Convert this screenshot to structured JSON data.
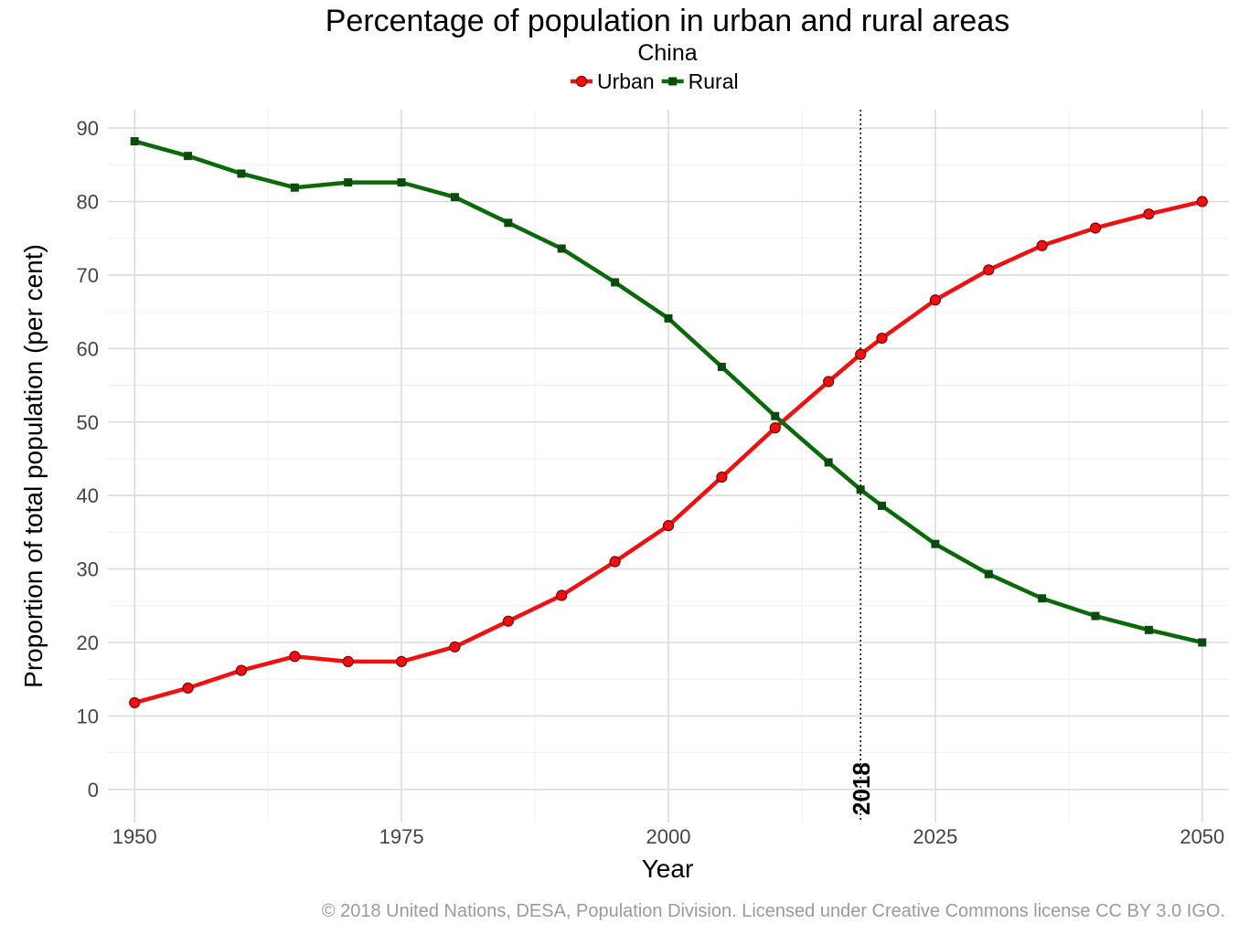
{
  "chart_data": {
    "type": "line",
    "title": "Percentage of population in urban and rural areas",
    "subtitle": "China",
    "xlabel": "Year",
    "ylabel": "Proportion of total population (per cent)",
    "xlim": [
      1947.5,
      2052.5
    ],
    "ylim": [
      -4.5,
      92.5
    ],
    "x_ticks": [
      1950,
      1975,
      2000,
      2025,
      2050
    ],
    "y_ticks": [
      0,
      10,
      20,
      30,
      40,
      50,
      60,
      70,
      80,
      90
    ],
    "grid": true,
    "legend_position": "top",
    "x": [
      1950,
      1955,
      1960,
      1965,
      1970,
      1975,
      1980,
      1985,
      1990,
      1995,
      2000,
      2005,
      2010,
      2015,
      2018,
      2020,
      2025,
      2030,
      2035,
      2040,
      2045,
      2050
    ],
    "series": [
      {
        "name": "Urban",
        "color": "#ee1111",
        "marker": "circle",
        "values": [
          11.8,
          13.8,
          16.2,
          18.1,
          17.4,
          17.4,
          19.4,
          22.9,
          26.4,
          31.0,
          35.9,
          42.5,
          49.2,
          55.5,
          59.2,
          61.4,
          66.6,
          70.7,
          74.0,
          76.4,
          78.3,
          80.0
        ]
      },
      {
        "name": "Rural",
        "color": "#0a6a0a",
        "marker": "square",
        "values": [
          88.2,
          86.2,
          83.8,
          81.9,
          82.6,
          82.6,
          80.6,
          77.1,
          73.6,
          69.0,
          64.1,
          57.5,
          50.8,
          44.5,
          40.8,
          38.6,
          33.4,
          29.3,
          26.0,
          23.6,
          21.7,
          20.0
        ]
      }
    ],
    "annotations": [
      {
        "x": 2018,
        "label": "2018",
        "style": "dotted-vertical-line"
      }
    ],
    "caption": "© 2018 United Nations, DESA, Population Division. Licensed under Creative Commons license CC BY 3.0 IGO."
  }
}
